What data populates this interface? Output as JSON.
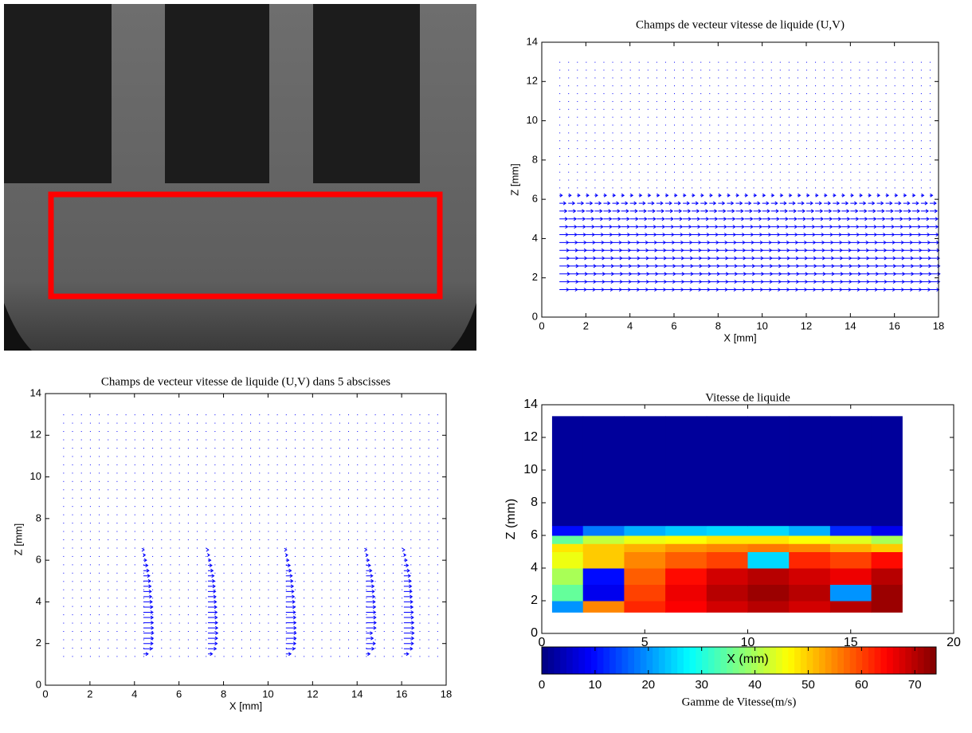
{
  "chart_data": [
    {
      "type": "quiver",
      "title": "Champs de vecteur vitesse de liquide (U,V)",
      "xlabel": "X [mm]",
      "ylabel": "Z [mm]",
      "xlim": [
        0,
        18
      ],
      "ylim": [
        0,
        14
      ],
      "xticks": [
        0,
        2,
        4,
        6,
        8,
        10,
        12,
        14,
        16,
        18
      ],
      "yticks": [
        0,
        2,
        4,
        6,
        8,
        10,
        12,
        14
      ],
      "color": "#0000ff",
      "x": [
        0.8,
        1.2,
        1.6,
        2,
        2.4,
        2.8,
        3.2,
        3.6,
        4,
        4.4,
        4.8,
        5.2,
        5.6,
        6,
        6.4,
        6.8,
        7.2,
        7.6,
        8,
        8.4,
        8.8,
        9.2,
        9.6,
        10,
        10.4,
        10.8,
        11.2,
        11.6,
        12,
        12.4,
        12.8,
        13.2,
        13.6,
        14,
        14.4,
        14.8,
        15.2,
        15.6,
        16,
        16.4,
        16.8,
        17.2,
        17.6
      ],
      "z": [
        1.4,
        1.8,
        2.2,
        2.6,
        3,
        3.4,
        3.8,
        4.2,
        4.6,
        5,
        5.4,
        5.8,
        6.2,
        6.6,
        7,
        7.4,
        7.8,
        8.2,
        8.6,
        9,
        9.4,
        9.8,
        10.2,
        10.6,
        11,
        11.4,
        11.8,
        12.2,
        12.6,
        13
      ],
      "u": [
        58,
        62,
        64,
        63,
        61,
        59,
        57,
        54,
        52,
        50,
        46,
        40,
        18,
        0,
        0,
        0,
        0,
        0,
        0,
        0,
        0,
        0,
        0,
        0,
        0,
        0,
        0,
        0,
        0,
        0
      ]
    },
    {
      "type": "profiles",
      "title": "Champs de vecteur vitesse de liquide (U,V) dans 5 abscisses",
      "xlabel": "X [mm]",
      "ylabel": "Z [mm]",
      "xlim": [
        0,
        18
      ],
      "ylim": [
        0,
        14
      ],
      "xticks": [
        0,
        2,
        4,
        6,
        8,
        10,
        12,
        14,
        16,
        18
      ],
      "yticks": [
        0,
        2,
        4,
        6,
        8,
        10,
        12,
        14
      ],
      "color": "#0000ff",
      "x": [
        0.8,
        1.2,
        1.6,
        2,
        2.4,
        2.8,
        3.2,
        3.6,
        4,
        4.4,
        4.8,
        5.2,
        5.6,
        6,
        6.4,
        6.8,
        7.2,
        7.6,
        8,
        8.4,
        8.8,
        9.2,
        9.6,
        10,
        10.4,
        10.8,
        11.2,
        11.6,
        12,
        12.4,
        12.8,
        13.2,
        13.6,
        14,
        14.4,
        14.8,
        15.2,
        15.6,
        16,
        16.4,
        16.8,
        17.2,
        17.6
      ],
      "z": [
        1.4,
        1.8,
        2.2,
        2.6,
        3,
        3.4,
        3.8,
        4.2,
        4.6,
        5,
        5.4,
        5.8,
        6.2,
        6.6,
        7,
        7.4,
        7.8,
        8.2,
        8.6,
        9,
        9.4,
        9.8,
        10.2,
        10.6,
        11,
        11.4,
        11.8,
        12.2,
        12.6,
        13
      ],
      "profile_z": [
        1.5,
        1.75,
        2,
        2.25,
        2.5,
        2.75,
        3,
        3.25,
        3.5,
        3.75,
        4,
        4.25,
        4.5,
        4.75,
        5,
        5.25,
        5.5,
        5.75,
        6,
        6.25,
        6.5
      ],
      "profiles": [
        {
          "x": 4.4,
          "values": [
            30,
            55,
            60,
            62,
            64,
            63,
            62,
            61,
            60,
            58,
            55,
            52,
            50,
            48,
            45,
            40,
            35,
            28,
            20,
            12,
            5
          ]
        },
        {
          "x": 7.3,
          "values": [
            28,
            52,
            58,
            60,
            62,
            61,
            60,
            58,
            57,
            55,
            53,
            50,
            48,
            45,
            42,
            38,
            32,
            25,
            18,
            10,
            4
          ]
        },
        {
          "x": 10.8,
          "values": [
            32,
            56,
            62,
            64,
            65,
            64,
            63,
            62,
            60,
            58,
            56,
            53,
            50,
            47,
            44,
            40,
            34,
            27,
            19,
            11,
            5
          ]
        },
        {
          "x": 14.4,
          "values": [
            25,
            50,
            58,
            45,
            40,
            62,
            63,
            62,
            60,
            59,
            57,
            55,
            52,
            50,
            46,
            42,
            36,
            28,
            20,
            12,
            5
          ]
        },
        {
          "x": 16.1,
          "values": [
            30,
            54,
            60,
            62,
            64,
            63,
            62,
            60,
            59,
            57,
            55,
            52,
            50,
            48,
            45,
            41,
            35,
            28,
            20,
            12,
            5
          ]
        }
      ]
    },
    {
      "type": "heatmap",
      "title": "Vitesse de liquide",
      "xlabel": "X (mm)",
      "ylabel": "Z (mm)",
      "xlim": [
        0,
        20
      ],
      "ylim": [
        0,
        14
      ],
      "xticks": [
        0,
        5,
        10,
        15,
        20
      ],
      "yticks": [
        0,
        2,
        4,
        6,
        8,
        10,
        12,
        14
      ],
      "x_edges": [
        0.5,
        2,
        4,
        6,
        8,
        10,
        12,
        14,
        16,
        17.5
      ],
      "z_edges": [
        1.3,
        2,
        3,
        4,
        5,
        5.5,
        6,
        6.6,
        13.3
      ],
      "values": [
        [
          20,
          55,
          62,
          65,
          68,
          70,
          68,
          70,
          72
        ],
        [
          35,
          8,
          60,
          66,
          70,
          72,
          70,
          20,
          72
        ],
        [
          40,
          10,
          58,
          64,
          68,
          70,
          68,
          66,
          70
        ],
        [
          45,
          50,
          55,
          58,
          60,
          25,
          62,
          60,
          64
        ],
        [
          48,
          50,
          52,
          54,
          55,
          56,
          55,
          52,
          50
        ],
        [
          35,
          42,
          45,
          46,
          48,
          48,
          46,
          44,
          40
        ],
        [
          10,
          18,
          22,
          24,
          25,
          25,
          22,
          12,
          8
        ],
        [
          2,
          2,
          2,
          2,
          2,
          2,
          2,
          2,
          2
        ]
      ],
      "clim": [
        0,
        74
      ],
      "cticks": [
        0,
        10,
        20,
        30,
        40,
        50,
        60,
        70
      ],
      "colorbar_label": "Gamme de Vitesse(m/s)"
    }
  ]
}
